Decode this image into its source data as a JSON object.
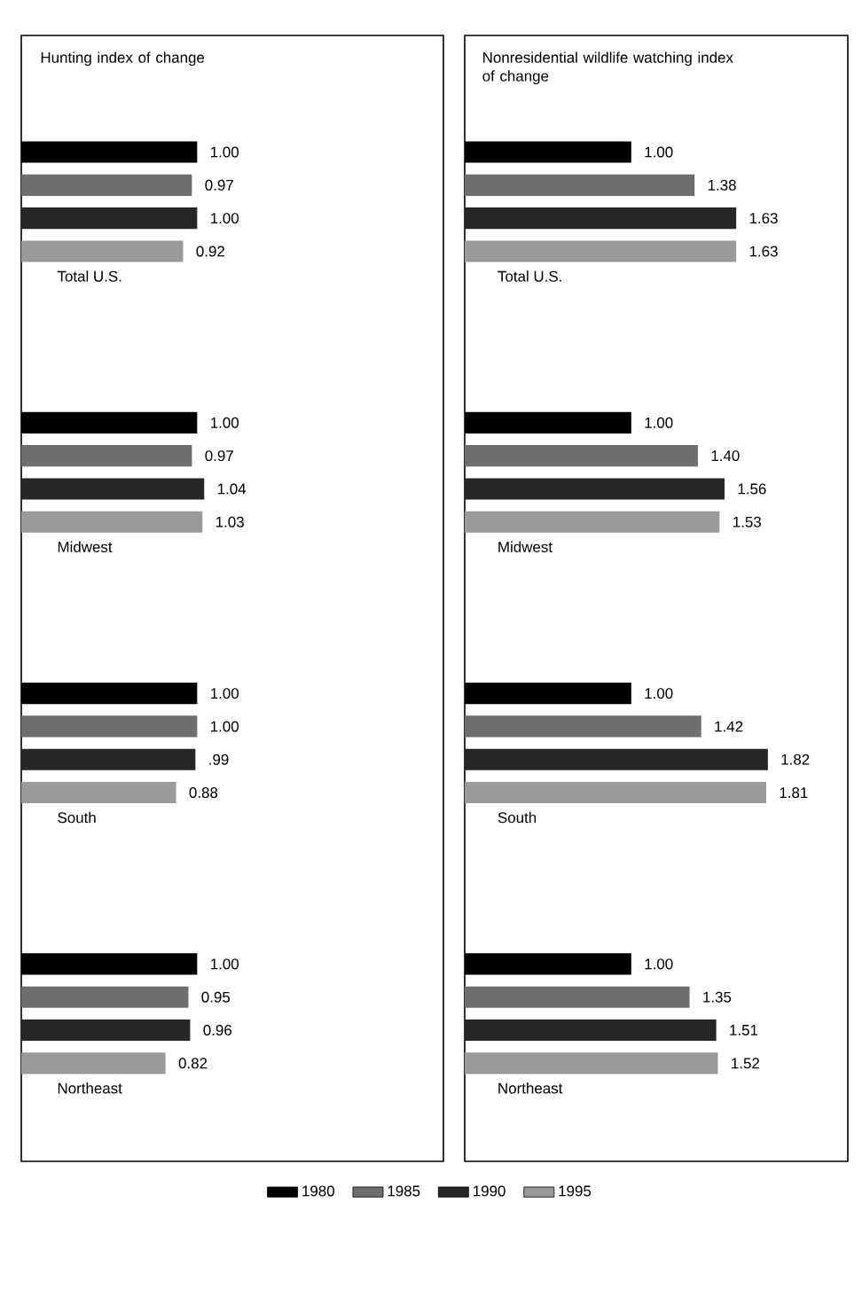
{
  "chart_data": [
    {
      "type": "bar",
      "orientation": "horizontal",
      "title": "Hunting index of change",
      "categories": [
        "Total U.S.",
        "Midwest",
        "South",
        "Northeast"
      ],
      "xlim": [
        0,
        2.4
      ],
      "tick_labels": false,
      "series": [
        {
          "color": "#000000",
          "values": [
            1.0,
            1.0,
            1.0,
            1.0
          ],
          "value_labels": [
            "1.00",
            "1.00",
            "1.00",
            "1.00"
          ]
        },
        {
          "color": "#6e6e6e",
          "values": [
            0.97,
            0.97,
            1.0,
            0.95
          ],
          "value_labels": [
            "0.97",
            "0.97",
            "1.00",
            "0.95"
          ]
        },
        {
          "color": "#262626",
          "values": [
            1.0,
            1.04,
            0.99,
            0.96
          ],
          "value_labels": [
            "1.00",
            "1.04",
            ".99",
            "0.96"
          ]
        },
        {
          "color": "#9a9a9a",
          "values": [
            0.92,
            1.03,
            0.88,
            0.82
          ],
          "value_labels": [
            "0.92",
            "1.03",
            "0.88",
            "0.82"
          ]
        }
      ]
    },
    {
      "type": "bar",
      "orientation": "horizontal",
      "title": "Nonresidential wildlife watching index of change",
      "categories": [
        "Total U.S.",
        "Midwest",
        "South",
        "Northeast"
      ],
      "xlim": [
        0,
        2.3
      ],
      "tick_labels": false,
      "legend": "bottom",
      "series": [
        {
          "name": "1980",
          "color": "#000000",
          "values": [
            1.0,
            1.0,
            1.0,
            1.0
          ],
          "value_labels": [
            "1.00",
            "1.00",
            "1.00",
            "1.00"
          ]
        },
        {
          "name": "1985",
          "color": "#6e6e6e",
          "values": [
            1.38,
            1.4,
            1.42,
            1.35
          ],
          "value_labels": [
            "1.38",
            "1.40",
            "1.42",
            "1.35"
          ]
        },
        {
          "name": "1990",
          "color": "#262626",
          "values": [
            1.63,
            1.56,
            1.82,
            1.51
          ],
          "value_labels": [
            "1.63",
            "1.56",
            "1.82",
            "1.51"
          ]
        },
        {
          "name": "1995",
          "color": "#9a9a9a",
          "values": [
            1.63,
            1.53,
            1.81,
            1.52
          ],
          "value_labels": [
            "1.63",
            "1.53",
            "1.81",
            "1.52"
          ]
        }
      ]
    }
  ]
}
